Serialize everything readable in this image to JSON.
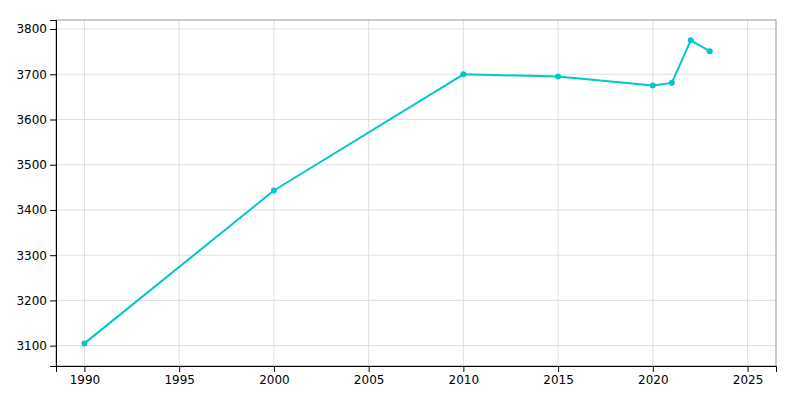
{
  "chart_data": {
    "type": "line",
    "x": [
      1990,
      2000,
      2010,
      2015,
      2020,
      2021,
      2022,
      2023
    ],
    "values": [
      3105,
      3443,
      3700,
      3695,
      3675,
      3681,
      3775,
      3751
    ],
    "color": "#00C8C8",
    "marker": "circle",
    "xlim": [
      1988.5,
      2026.5
    ],
    "ylim": [
      3055,
      3820
    ],
    "xticks": [
      1990,
      1995,
      2000,
      2005,
      2010,
      2015,
      2020,
      2025
    ],
    "yticks": [
      3100,
      3200,
      3300,
      3400,
      3500,
      3600,
      3700,
      3800
    ],
    "grid": true
  }
}
